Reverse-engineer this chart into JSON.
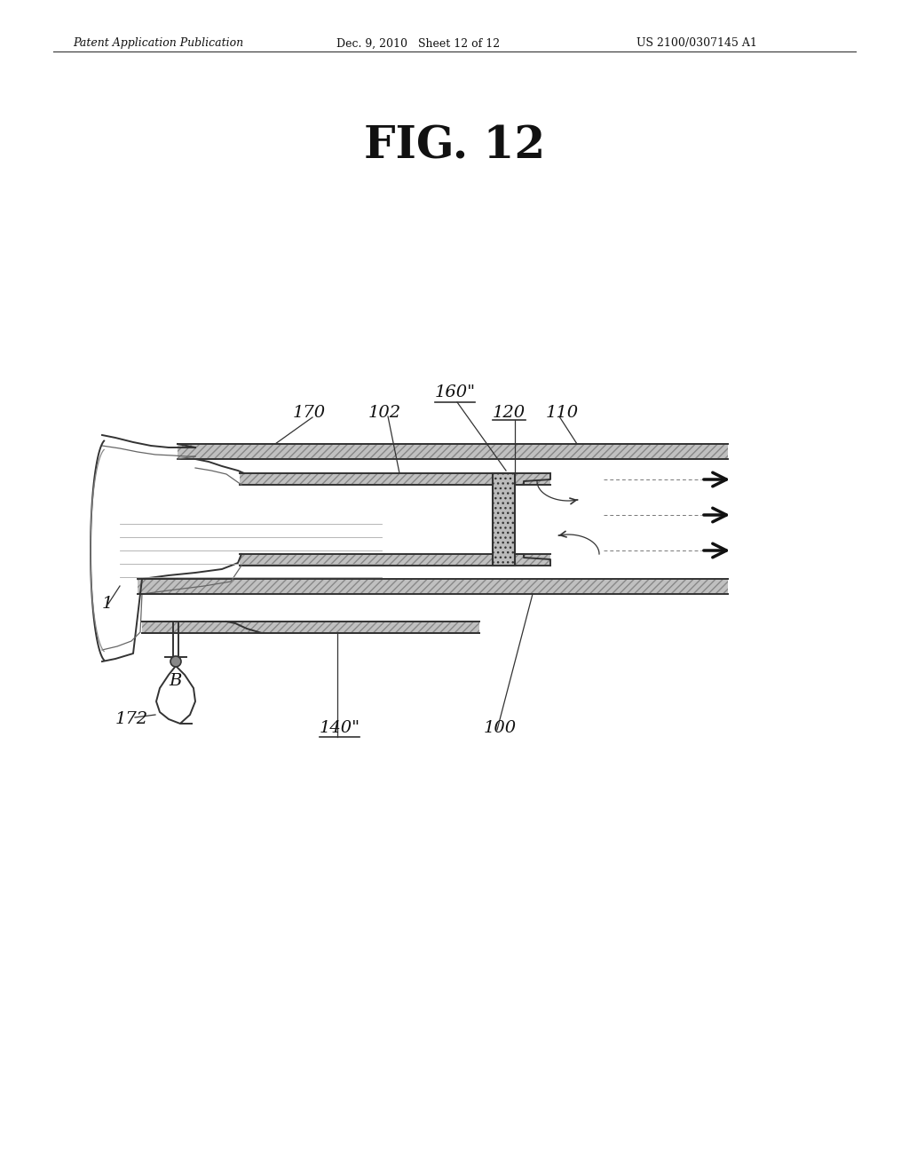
{
  "title": "FIG. 12",
  "header_left": "Patent Application Publication",
  "header_center": "Dec. 9, 2010   Sheet 12 of 12",
  "header_right": "US 2100/0307145 A1",
  "bg_color": "#ffffff",
  "line_color": "#333333",
  "hatch_color": "#aaaaaa",
  "lw_thick": 2.0,
  "lw_medium": 1.4,
  "lw_thin": 0.9
}
